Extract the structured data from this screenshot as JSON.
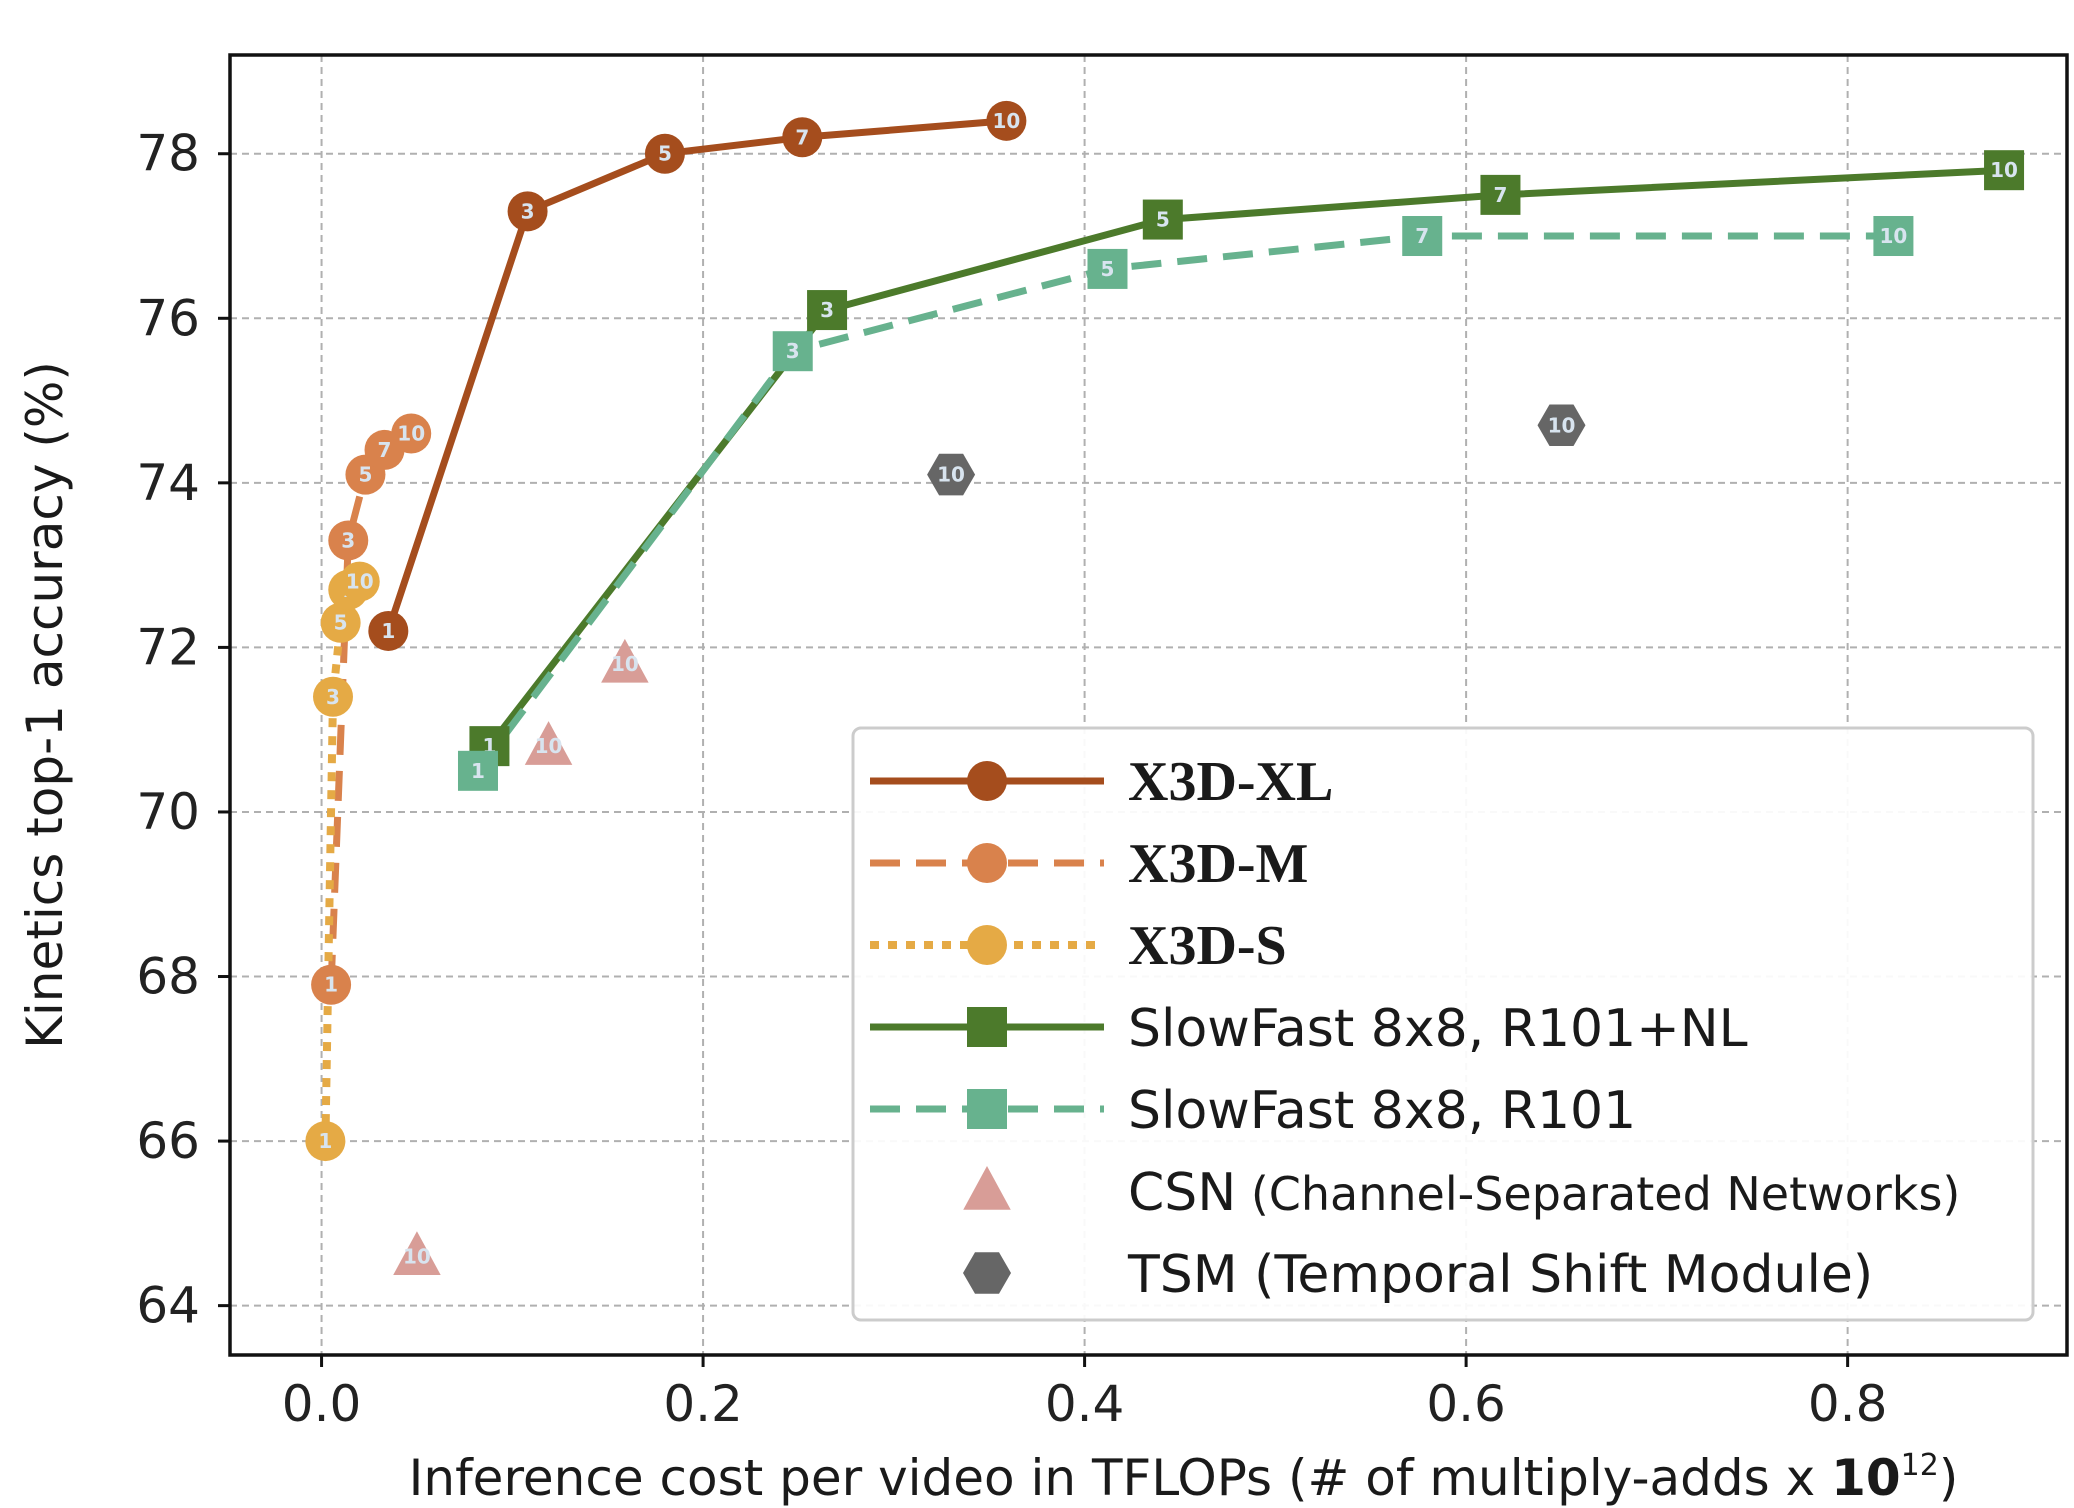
{
  "chart_data": {
    "type": "line",
    "title": "",
    "xlabel": "Inference cost per video in TFLOPs (# of multiply-adds x ",
    "xlabel_bold": "10",
    "xlabel_sup": "12",
    "xlabel_end": ")",
    "ylabel": "Kinetics top-1 accuracy (%)",
    "xlim": [
      -0.048,
      0.915
    ],
    "ylim": [
      63.4,
      79.2
    ],
    "xticks": [
      0.0,
      0.2,
      0.4,
      0.6,
      0.8
    ],
    "xtick_labels": [
      "0.0",
      "0.2",
      "0.4",
      "0.6",
      "0.8"
    ],
    "yticks": [
      64,
      66,
      68,
      70,
      72,
      74,
      76,
      78
    ],
    "ytick_labels": [
      "64",
      "66",
      "68",
      "70",
      "72",
      "74",
      "76",
      "78"
    ],
    "grid": true,
    "legend_position": "lower-right",
    "series": [
      {
        "name": "X3D-XL",
        "marker": "circle",
        "line": "solid",
        "color": "#a54d1d",
        "points": [
          {
            "x": 0.035,
            "y": 72.2,
            "label": "1"
          },
          {
            "x": 0.108,
            "y": 77.3,
            "label": "3"
          },
          {
            "x": 0.18,
            "y": 78.0,
            "label": "5"
          },
          {
            "x": 0.252,
            "y": 78.2,
            "label": "7"
          },
          {
            "x": 0.359,
            "y": 78.4,
            "label": "10"
          }
        ]
      },
      {
        "name": "X3D-M",
        "marker": "circle",
        "line": "dashed",
        "color": "#d9824c",
        "points": [
          {
            "x": 0.005,
            "y": 67.9,
            "label": "1"
          },
          {
            "x": 0.014,
            "y": 73.3,
            "label": "3"
          },
          {
            "x": 0.023,
            "y": 74.1,
            "label": "5"
          },
          {
            "x": 0.033,
            "y": 74.4,
            "label": "7"
          },
          {
            "x": 0.047,
            "y": 74.6,
            "label": "10"
          }
        ]
      },
      {
        "name": "X3D-S",
        "marker": "circle",
        "line": "dotted",
        "color": "#e5aa45",
        "points": [
          {
            "x": 0.002,
            "y": 66.0,
            "label": "1"
          },
          {
            "x": 0.006,
            "y": 71.4,
            "label": "3"
          },
          {
            "x": 0.01,
            "y": 72.3,
            "label": "5"
          },
          {
            "x": 0.014,
            "y": 72.7,
            "label": "7"
          },
          {
            "x": 0.02,
            "y": 72.8,
            "label": "10"
          }
        ]
      },
      {
        "name": "SlowFast 8x8, R101+NL",
        "marker": "square",
        "line": "solid",
        "color": "#4c7a2b",
        "points": [
          {
            "x": 0.088,
            "y": 70.8,
            "label": "1"
          },
          {
            "x": 0.265,
            "y": 76.1,
            "label": "3"
          },
          {
            "x": 0.441,
            "y": 77.2,
            "label": "5"
          },
          {
            "x": 0.618,
            "y": 77.5,
            "label": "7"
          },
          {
            "x": 0.882,
            "y": 77.8,
            "label": "10"
          }
        ]
      },
      {
        "name": "SlowFast 8x8, R101",
        "marker": "square",
        "line": "dashed",
        "color": "#67b28e",
        "points": [
          {
            "x": 0.082,
            "y": 70.5,
            "label": "1"
          },
          {
            "x": 0.247,
            "y": 75.6,
            "label": "3"
          },
          {
            "x": 0.412,
            "y": 76.6,
            "label": "5"
          },
          {
            "x": 0.577,
            "y": 77.0,
            "label": "7"
          },
          {
            "x": 0.824,
            "y": 77.0,
            "label": "10"
          }
        ]
      },
      {
        "name": "CSN",
        "name_suffix": " (Channel-Separated Networks)",
        "marker": "triangle",
        "line": "none",
        "color": "#d89d97",
        "points": [
          {
            "x": 0.05,
            "y": 64.6,
            "label": "10"
          },
          {
            "x": 0.119,
            "y": 70.8,
            "label": "10"
          },
          {
            "x": 0.159,
            "y": 71.8,
            "label": "10"
          }
        ]
      },
      {
        "name": "TSM",
        "name_suffix": " (Temporal Shift Module)",
        "marker": "hexagon",
        "line": "none",
        "color": "#666666",
        "points": [
          {
            "x": 0.33,
            "y": 74.1,
            "label": "10"
          },
          {
            "x": 0.65,
            "y": 74.7,
            "label": "10"
          }
        ]
      }
    ]
  }
}
